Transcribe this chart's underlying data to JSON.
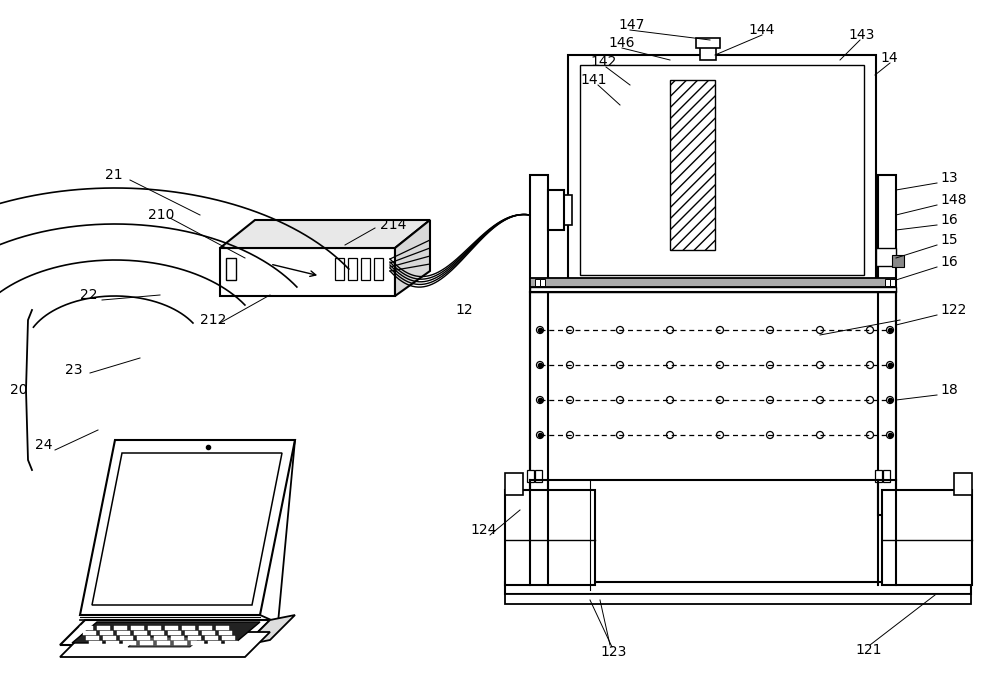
{
  "bg_color": "#ffffff",
  "lc": "#000000",
  "gray1": "#aaaaaa",
  "gray2": "#cccccc",
  "gray3": "#888888",
  "hatch_gray": "#999999"
}
